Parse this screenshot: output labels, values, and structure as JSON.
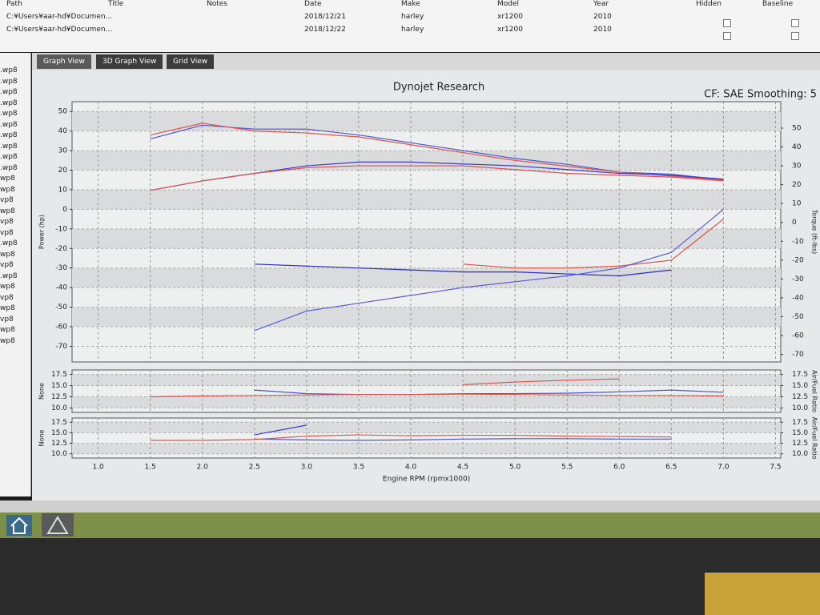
{
  "table": {
    "columns": [
      "Path",
      "Title",
      "Notes",
      "Date",
      "Make",
      "Model",
      "Year",
      "Hidden",
      "Baseline"
    ],
    "rows": [
      [
        "C:¥Users¥aar-hd¥Documen...",
        null,
        null,
        "2018/12/21",
        "harley",
        "xr1200",
        "2010"
      ],
      [
        "C:¥Users¥aar-hd¥Documen...",
        null,
        null,
        "2018/12/22",
        "harley",
        "xr1200",
        "2010"
      ]
    ]
  },
  "tabs": [
    "Graph View",
    "3D Graph View",
    "Grid View"
  ],
  "sidebar": {
    "files": [
      ".wp8",
      ".wp8",
      ".wp8",
      ".wp8",
      ".wp8",
      ".wp8",
      ".wp8",
      ".wp8",
      ".wp8",
      ".wp8",
      "wp8",
      "wp8",
      "vp8",
      "wp8",
      "vp8",
      "vp8",
      ".wp8",
      "wp8",
      "vp8",
      ".wp8",
      "wp8",
      "vp8",
      "wp8",
      "vp8",
      "wp8",
      "wp8"
    ]
  },
  "chart_data": [
    {
      "type": "line",
      "title": "Dynojet Research",
      "annotation": "CF: SAE Smoothing: 5",
      "ylabel": "Power (hp)",
      "y2label": "Torque (ft-lbs)",
      "x": [
        1.5,
        2,
        2.5,
        3,
        3.5,
        4,
        4.5,
        5,
        5.5,
        6,
        6.5,
        7
      ],
      "xlim": [
        0.75,
        7.55
      ],
      "ylim": [
        -78,
        55
      ],
      "y2lim": [
        -74,
        64
      ],
      "yticks": [
        50,
        40,
        30,
        20,
        10,
        0,
        -10,
        -20,
        -30,
        -40,
        -50,
        -60,
        -70
      ],
      "y2ticks": [
        50,
        40,
        30,
        20,
        10,
        0,
        -10,
        -20,
        -30,
        -40,
        -50,
        -60,
        -70
      ],
      "grid": true,
      "series": [
        {
          "color": "#4a52d8",
          "values": [
            36,
            43,
            41,
            41,
            38,
            34,
            30,
            26,
            23,
            19,
            18,
            15
          ]
        },
        {
          "color": "#e0504a",
          "values": [
            38,
            44,
            40,
            39,
            37,
            33,
            29,
            25,
            22,
            19,
            17,
            15
          ]
        },
        {
          "color": "#3a3ad0",
          "axis": "y2",
          "values": [
            17,
            22,
            26,
            30,
            32,
            32,
            31,
            30,
            28,
            26,
            25,
            23
          ]
        },
        {
          "color": "#e0504a",
          "axis": "y2",
          "values": [
            17,
            22,
            26,
            29,
            30,
            30,
            30,
            28,
            26,
            25,
            24,
            22
          ]
        },
        {
          "color": "#2a2ac8",
          "values": [
            null,
            null,
            -28,
            -29,
            -30,
            -31,
            -32,
            -32,
            -33,
            -34,
            -31,
            null
          ]
        },
        {
          "color": "#e0504a",
          "values": [
            null,
            null,
            null,
            null,
            null,
            null,
            -28,
            -30,
            -30,
            -29,
            -26,
            -5
          ]
        },
        {
          "color": "#5a5ae0",
          "values": [
            null,
            null,
            -62,
            -52,
            -48,
            -44,
            -40,
            -37,
            -34,
            -30,
            -22,
            0
          ]
        }
      ]
    },
    {
      "type": "line",
      "ylabel": "None",
      "y2label": "Air/Fuel Ratio",
      "x": [
        1.5,
        2,
        2.5,
        3,
        3.5,
        4,
        4.5,
        5,
        5.5,
        6,
        6.5,
        7
      ],
      "xlim": [
        0.75,
        7.55
      ],
      "ylim": [
        9,
        18.5
      ],
      "y2lim": [
        9,
        18.5
      ],
      "yticks": [
        17.5,
        {
          "value": 15,
          "label": "15.0"
        },
        12.5,
        {
          "value": 10,
          "label": "10.0"
        }
      ],
      "y2ticks": [
        17.5,
        {
          "value": 15,
          "label": "15.0"
        },
        12.5,
        {
          "value": 10,
          "label": "10.0"
        }
      ],
      "grid": true,
      "series": [
        {
          "color": "#4a52d8",
          "values": [
            null,
            null,
            14,
            13.2,
            13,
            13,
            13.2,
            13.2,
            13.3,
            13.6,
            14,
            13.5
          ]
        },
        {
          "color": "#e0504a",
          "values": [
            12.5,
            12.7,
            12.8,
            12.9,
            13,
            13,
            13.1,
            13,
            12.9,
            12.8,
            12.8,
            12.7
          ]
        },
        {
          "color": "#e0504a",
          "values": [
            null,
            null,
            null,
            null,
            null,
            null,
            15.2,
            15.8,
            16.2,
            16.5,
            null,
            null
          ]
        }
      ]
    },
    {
      "type": "line",
      "ylabel": "None",
      "y2label": "Air/Fuel Ratio",
      "x": [
        1.5,
        2,
        2.5,
        3,
        3.5,
        4,
        4.5,
        5,
        5.5,
        6,
        6.5,
        7
      ],
      "xlim": [
        0.75,
        7.55
      ],
      "ylim": [
        9,
        18.5
      ],
      "y2lim": [
        9,
        18.5
      ],
      "xlabel": "Engine RPM (rpmx1000)",
      "xticks": [
        {
          "value": 1,
          "label": "1.0"
        },
        1.5,
        {
          "value": 2,
          "label": "2.0"
        },
        2.5,
        {
          "value": 3,
          "label": "3.0"
        },
        3.5,
        {
          "value": 4,
          "label": "4.0"
        },
        4.5,
        {
          "value": 5,
          "label": "5.0"
        },
        5.5,
        {
          "value": 6,
          "label": "6.0"
        },
        6.5,
        {
          "value": 7,
          "label": "7.0"
        },
        7.5
      ],
      "yticks": [
        17.5,
        {
          "value": 15,
          "label": "15.0"
        },
        12.5,
        {
          "value": 10,
          "label": "10.0"
        }
      ],
      "y2ticks": [
        17.5,
        {
          "value": 15,
          "label": "15.0"
        },
        12.5,
        {
          "value": 10,
          "label": "10.0"
        }
      ],
      "grid": true,
      "series": [
        {
          "color": "#4a52d8",
          "values": [
            null,
            null,
            13.5,
            13.3,
            13.2,
            13.3,
            13.5,
            13.6,
            13.6,
            13.5,
            13.5,
            null
          ]
        },
        {
          "color": "#e0504a",
          "values": [
            13.2,
            13.2,
            13.4,
            14.2,
            14.5,
            14.3,
            14.4,
            14.4,
            14.2,
            14.1,
            14,
            null
          ]
        },
        {
          "color": "#3a3ad0",
          "values": [
            null,
            null,
            14.5,
            16.8,
            null,
            null,
            null,
            null,
            null,
            null,
            null,
            null
          ]
        }
      ]
    }
  ]
}
